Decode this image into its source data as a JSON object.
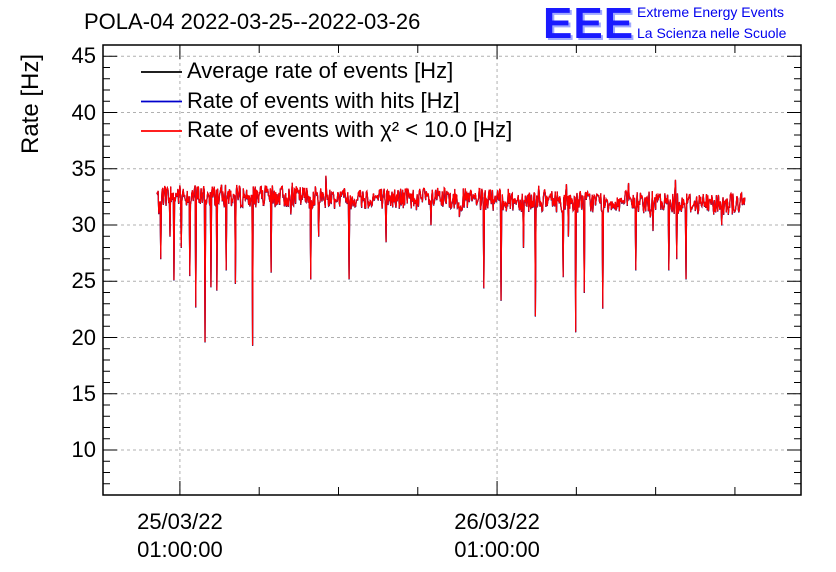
{
  "header": {
    "title": "POLA-04 2022-03-25--2022-03-26",
    "logo_text": "EEE",
    "logo_line1": "Extreme Energy Events",
    "logo_line2": "La Scienza nelle Scuole"
  },
  "colors": {
    "average": "#000000",
    "hits": "#0000cc",
    "chi2": "#ff0000",
    "logo": "#1a1aff"
  },
  "chart_data": {
    "type": "line",
    "ylabel": "Rate [Hz]",
    "ylim": [
      6,
      46
    ],
    "yticks": [
      10,
      15,
      20,
      25,
      30,
      35,
      40,
      45
    ],
    "xticks": [
      {
        "date": "25/03/22",
        "time": "01:00:00",
        "hour": 1
      },
      {
        "date": "26/03/22",
        "time": "01:00:00",
        "hour": 25
      }
    ],
    "xrange_hours": [
      -4.82,
      48.0
    ],
    "data_range_hours": [
      -0.75,
      43.75
    ],
    "grid": true,
    "legend_position": "top-left",
    "series": [
      {
        "name": "Average rate of events [Hz]",
        "key": "average"
      },
      {
        "name": "Rate of events with hits [Hz]",
        "key": "hits"
      },
      {
        "name": "Rate of events with χ² < 10.0 [Hz]",
        "key": "chi2"
      }
    ],
    "baseline_hz": {
      "start": 32.7,
      "end": 31.9
    },
    "noise_hz": 1.0,
    "dips": [
      {
        "hour": -0.6,
        "value": 31.0
      },
      {
        "hour": -0.45,
        "value": 27.0
      },
      {
        "hour": 0.25,
        "value": 29.0
      },
      {
        "hour": 0.55,
        "value": 25.1
      },
      {
        "hour": 1.1,
        "value": 28.0
      },
      {
        "hour": 1.75,
        "value": 25.5
      },
      {
        "hour": 2.2,
        "value": 22.7
      },
      {
        "hour": 2.9,
        "value": 19.6
      },
      {
        "hour": 3.35,
        "value": 24.5
      },
      {
        "hour": 3.8,
        "value": 24.2
      },
      {
        "hour": 4.5,
        "value": 26.0
      },
      {
        "hour": 5.2,
        "value": 24.8
      },
      {
        "hour": 6.5,
        "value": 19.3
      },
      {
        "hour": 7.9,
        "value": 25.8
      },
      {
        "hour": 10.9,
        "value": 25.2
      },
      {
        "hour": 11.5,
        "value": 29.0
      },
      {
        "hour": 13.8,
        "value": 25.2
      },
      {
        "hour": 16.6,
        "value": 28.5
      },
      {
        "hour": 20.0,
        "value": 30.0
      },
      {
        "hour": 24.0,
        "value": 24.4
      },
      {
        "hour": 25.3,
        "value": 23.3
      },
      {
        "hour": 27.0,
        "value": 28.0
      },
      {
        "hour": 27.9,
        "value": 21.9
      },
      {
        "hour": 30.0,
        "value": 25.4
      },
      {
        "hour": 30.4,
        "value": 29.0
      },
      {
        "hour": 30.95,
        "value": 20.5
      },
      {
        "hour": 31.6,
        "value": 24.0
      },
      {
        "hour": 33.0,
        "value": 22.6
      },
      {
        "hour": 35.5,
        "value": 26.0
      },
      {
        "hour": 36.8,
        "value": 29.5
      },
      {
        "hour": 38.0,
        "value": 26.0
      },
      {
        "hour": 38.6,
        "value": 27.0
      },
      {
        "hour": 39.3,
        "value": 25.2
      },
      {
        "hour": 42.0,
        "value": 30.0
      }
    ]
  }
}
